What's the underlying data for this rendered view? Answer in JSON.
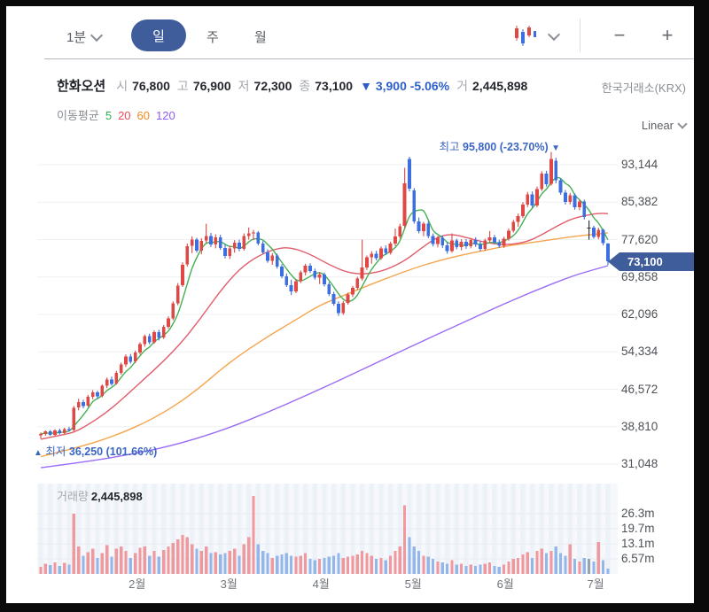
{
  "toolbar": {
    "interval_dropdown": "1분",
    "tabs": [
      {
        "label": "일",
        "active": true
      },
      {
        "label": "주",
        "active": false
      },
      {
        "label": "월",
        "active": false
      }
    ],
    "zoom_out": "−",
    "zoom_in": "+"
  },
  "header": {
    "symbol": "한화오션",
    "open_label": "시",
    "open": "76,800",
    "high_label": "고",
    "high": "76,900",
    "low_label": "저",
    "low": "72,300",
    "close_label": "종",
    "close": "73,100",
    "change_arrow": "▼",
    "change": "3,900",
    "change_pct": "-5.06%",
    "volume_label": "거",
    "volume": "2,445,898",
    "exchange": "한국거래소(KRX)"
  },
  "legend": {
    "title": "이동평균",
    "periods": [
      {
        "label": "5",
        "color": "#2faf4e"
      },
      {
        "label": "20",
        "color": "#ef4b57"
      },
      {
        "label": "60",
        "color": "#f08c1e"
      },
      {
        "label": "120",
        "color": "#8e5cf0"
      }
    ],
    "scale": "Linear"
  },
  "annotations": {
    "high": {
      "prefix": "최고",
      "text": "95,800 (-23.70%)",
      "marker": "▼"
    },
    "low": {
      "marker": "▲",
      "prefix": "최저",
      "text": "36,250 (101.66%)"
    }
  },
  "price_tag": "73,100",
  "volume_pane": {
    "label": "거래량",
    "value": "2,445,898"
  },
  "chart_data": {
    "type": "candlestick+volume",
    "symbol": "한화오션",
    "scale": "Linear",
    "y_axis_ticks": [
      {
        "label": "93,144",
        "v": 93.144
      },
      {
        "label": "85,382",
        "v": 85.382
      },
      {
        "label": "77,620",
        "v": 77.62
      },
      {
        "label": "69,858",
        "v": 69.858
      },
      {
        "label": "62,096",
        "v": 62.096
      },
      {
        "label": "54,334",
        "v": 54.334
      },
      {
        "label": "46,572",
        "v": 46.572
      },
      {
        "label": "38,810",
        "v": 38.81
      },
      {
        "label": "31,048",
        "v": 31.048
      }
    ],
    "volume_ticks": [
      {
        "label": "26.3m",
        "v": 26.3
      },
      {
        "label": "19.7m",
        "v": 19.7
      },
      {
        "label": "13.1m",
        "v": 13.1
      },
      {
        "label": "6.57m",
        "v": 6.57
      }
    ],
    "x_axis": [
      {
        "label": "2월",
        "i": 20.4
      },
      {
        "label": "3월",
        "i": 39.8
      },
      {
        "label": "4월",
        "i": 59.3
      },
      {
        "label": "5월",
        "i": 78.8
      },
      {
        "label": "6월",
        "i": 98.3
      },
      {
        "label": "7월",
        "i": 117.4
      }
    ],
    "high_marker": {
      "i": 108,
      "price": 95.8
    },
    "low_marker": {
      "i": 0,
      "price": 36.25
    },
    "candles": [
      [
        37.0,
        37.6,
        36.3,
        37.3
      ],
      [
        37.3,
        38.0,
        36.9,
        37.8
      ],
      [
        37.8,
        38.1,
        36.9,
        37.1
      ],
      [
        37.1,
        38.3,
        36.8,
        38.0
      ],
      [
        38.0,
        38.4,
        37.2,
        37.5
      ],
      [
        37.5,
        38.6,
        37.3,
        38.3
      ],
      [
        38.3,
        38.8,
        37.8,
        38.0
      ],
      [
        38.1,
        43.1,
        37.9,
        42.7
      ],
      [
        42.8,
        44.6,
        42.2,
        43.9
      ],
      [
        43.9,
        44.4,
        42.6,
        43.1
      ],
      [
        43.2,
        45.4,
        42.9,
        45.0
      ],
      [
        45.0,
        46.4,
        44.5,
        45.9
      ],
      [
        45.9,
        46.3,
        44.6,
        45.1
      ],
      [
        45.2,
        47.6,
        44.9,
        47.3
      ],
      [
        47.3,
        49.0,
        46.8,
        48.6
      ],
      [
        48.6,
        49.2,
        47.3,
        47.7
      ],
      [
        47.8,
        50.4,
        47.5,
        50.0
      ],
      [
        50.0,
        52.1,
        49.6,
        51.7
      ],
      [
        51.7,
        53.8,
        51.2,
        53.4
      ],
      [
        53.4,
        53.9,
        51.9,
        52.3
      ],
      [
        52.4,
        54.6,
        52.0,
        54.2
      ],
      [
        54.2,
        56.3,
        53.8,
        55.9
      ],
      [
        55.9,
        57.9,
        55.4,
        57.6
      ],
      [
        57.6,
        58.1,
        55.9,
        56.3
      ],
      [
        56.3,
        58.8,
        56.0,
        58.4
      ],
      [
        58.4,
        58.9,
        56.7,
        57.2
      ],
      [
        57.3,
        59.9,
        57.0,
        59.5
      ],
      [
        59.5,
        61.7,
        59.1,
        61.3
      ],
      [
        61.3,
        64.8,
        60.9,
        64.4
      ],
      [
        64.4,
        68.6,
        64.0,
        68.1
      ],
      [
        68.2,
        72.9,
        67.8,
        72.4
      ],
      [
        72.5,
        76.8,
        72.0,
        76.2
      ],
      [
        76.3,
        78.3,
        74.8,
        77.6
      ],
      [
        77.6,
        78.0,
        74.9,
        75.3
      ],
      [
        75.3,
        77.9,
        74.6,
        77.3
      ],
      [
        77.4,
        80.9,
        76.9,
        78.4
      ],
      [
        78.4,
        79.0,
        76.1,
        76.6
      ],
      [
        76.6,
        78.7,
        75.8,
        78.1
      ],
      [
        78.1,
        78.6,
        75.5,
        75.9
      ],
      [
        75.9,
        76.6,
        73.7,
        74.2
      ],
      [
        74.2,
        76.3,
        73.6,
        75.8
      ],
      [
        75.8,
        77.5,
        74.9,
        77.0
      ],
      [
        77.0,
        77.6,
        75.2,
        75.7
      ],
      [
        75.7,
        78.9,
        75.3,
        78.4
      ],
      [
        78.4,
        80.1,
        77.6,
        78.9
      ],
      [
        78.9,
        79.6,
        77.5,
        79.1
      ],
      [
        79.1,
        79.4,
        76.4,
        76.8
      ],
      [
        76.8,
        77.3,
        74.6,
        75.0
      ],
      [
        75.0,
        75.6,
        72.8,
        73.2
      ],
      [
        73.2,
        74.8,
        72.4,
        74.3
      ],
      [
        74.3,
        74.7,
        71.6,
        72.0
      ],
      [
        72.0,
        72.5,
        69.6,
        70.0
      ],
      [
        70.0,
        70.6,
        67.8,
        68.2
      ],
      [
        68.2,
        69.3,
        66.1,
        66.9
      ],
      [
        66.9,
        69.4,
        66.5,
        69.0
      ],
      [
        69.0,
        71.2,
        68.6,
        70.8
      ],
      [
        70.8,
        72.6,
        70.2,
        72.2
      ],
      [
        72.2,
        72.7,
        70.7,
        71.1
      ],
      [
        71.1,
        71.6,
        69.3,
        69.7
      ],
      [
        69.7,
        70.9,
        68.4,
        70.4
      ],
      [
        70.4,
        70.8,
        67.9,
        68.3
      ],
      [
        68.3,
        68.8,
        65.9,
        66.3
      ],
      [
        66.3,
        66.8,
        63.9,
        64.3
      ],
      [
        64.3,
        64.8,
        61.8,
        62.4
      ],
      [
        62.4,
        64.9,
        62.0,
        64.5
      ],
      [
        64.5,
        66.6,
        64.1,
        66.2
      ],
      [
        66.2,
        68.0,
        65.7,
        67.6
      ],
      [
        67.6,
        69.9,
        67.2,
        69.5
      ],
      [
        69.5,
        77.6,
        69.1,
        71.8
      ],
      [
        71.8,
        74.3,
        71.3,
        73.9
      ],
      [
        73.9,
        75.2,
        72.6,
        74.7
      ],
      [
        74.7,
        75.3,
        73.3,
        73.8
      ],
      [
        73.8,
        76.2,
        73.4,
        75.8
      ],
      [
        75.8,
        76.4,
        74.4,
        74.9
      ],
      [
        74.9,
        77.2,
        74.5,
        76.8
      ],
      [
        76.8,
        79.9,
        76.3,
        78.3
      ],
      [
        78.3,
        80.9,
        77.8,
        80.4
      ],
      [
        80.5,
        92.5,
        80.1,
        89.3
      ],
      [
        94.3,
        94.8,
        87.6,
        88.2
      ],
      [
        87.8,
        88.3,
        80.9,
        81.4
      ],
      [
        81.4,
        82.2,
        78.9,
        79.4
      ],
      [
        79.4,
        81.3,
        78.3,
        80.9
      ],
      [
        80.9,
        81.4,
        77.9,
        78.4
      ],
      [
        78.4,
        78.9,
        76.2,
        76.7
      ],
      [
        76.7,
        78.4,
        76.0,
        78.0
      ],
      [
        78.0,
        78.5,
        75.9,
        76.4
      ],
      [
        76.4,
        77.1,
        74.7,
        75.2
      ],
      [
        75.2,
        78.9,
        74.9,
        77.4
      ],
      [
        77.4,
        77.8,
        75.6,
        76.1
      ],
      [
        76.1,
        77.7,
        75.4,
        77.2
      ],
      [
        77.2,
        77.7,
        75.7,
        76.2
      ],
      [
        76.2,
        77.9,
        75.8,
        77.5
      ],
      [
        77.5,
        78.1,
        76.1,
        76.6
      ],
      [
        76.6,
        77.4,
        75.2,
        75.7
      ],
      [
        75.7,
        77.8,
        75.3,
        77.4
      ],
      [
        77.4,
        79.4,
        77.0,
        78.1
      ],
      [
        78.1,
        78.6,
        76.7,
        77.1
      ],
      [
        77.1,
        77.6,
        75.9,
        76.3
      ],
      [
        76.3,
        78.2,
        75.9,
        77.8
      ],
      [
        77.8,
        79.9,
        77.4,
        79.5
      ],
      [
        79.5,
        81.7,
        79.1,
        81.3
      ],
      [
        81.3,
        83.0,
        80.3,
        82.5
      ],
      [
        82.5,
        85.4,
        82.1,
        84.9
      ],
      [
        84.9,
        87.5,
        84.4,
        87.0
      ],
      [
        87.0,
        87.6,
        84.2,
        84.7
      ],
      [
        84.7,
        88.6,
        84.3,
        88.1
      ],
      [
        88.1,
        91.8,
        87.7,
        91.3
      ],
      [
        91.3,
        91.9,
        88.6,
        89.1
      ],
      [
        89.2,
        95.8,
        88.8,
        94.3
      ],
      [
        94.0,
        94.6,
        89.3,
        89.9
      ],
      [
        89.9,
        90.4,
        86.9,
        87.4
      ],
      [
        87.4,
        87.9,
        84.9,
        85.4
      ],
      [
        85.4,
        87.3,
        84.9,
        86.8
      ],
      [
        86.8,
        87.2,
        83.8,
        84.3
      ],
      [
        84.3,
        85.9,
        83.7,
        85.5
      ],
      [
        85.5,
        85.9,
        81.8,
        82.3
      ],
      [
        80.1,
        81.6,
        77.6,
        80.1
      ],
      [
        80.1,
        80.5,
        77.8,
        78.2
      ],
      [
        78.2,
        80.1,
        77.7,
        79.6
      ],
      [
        79.6,
        79.9,
        76.4,
        76.9
      ],
      [
        76.8,
        76.9,
        72.3,
        73.1
      ]
    ],
    "volumes": [
      3.0,
      4.5,
      3.8,
      5.0,
      3.5,
      4.8,
      4.0,
      26.3,
      12,
      8,
      9.5,
      11,
      7,
      9,
      12.5,
      7.5,
      11,
      12,
      10,
      7,
      9,
      11.5,
      12,
      8,
      10,
      7.5,
      10.5,
      12,
      13.5,
      15,
      17,
      16,
      13,
      11,
      10,
      12,
      9,
      9.5,
      8.5,
      9,
      10,
      11,
      8,
      13,
      16,
      34,
      13,
      10,
      9,
      7,
      8,
      8.5,
      9,
      8,
      7.5,
      8,
      9,
      6.5,
      6,
      6.5,
      7,
      7.5,
      8,
      9,
      7,
      7.5,
      8,
      8.5,
      10,
      9,
      8,
      6.5,
      7,
      6,
      8,
      10,
      12,
      30,
      16,
      12,
      10,
      8,
      7.5,
      6.5,
      5.5,
      5,
      4.5,
      6,
      4,
      4.5,
      3.5,
      4,
      3.5,
      4,
      4.5,
      5,
      3.5,
      3,
      4,
      5.5,
      6.5,
      7,
      8.5,
      9.5,
      7,
      10,
      11,
      9,
      10,
      12,
      9,
      8,
      13,
      6.5,
      5.5,
      7,
      6.5,
      5.5,
      14,
      6,
      2.4
    ],
    "ma20": [
      [
        0,
        36.2
      ],
      [
        4,
        37.0
      ],
      [
        7,
        37.6
      ],
      [
        10,
        39.2
      ],
      [
        14,
        41.8
      ],
      [
        18,
        45.2
      ],
      [
        22,
        48.8
      ],
      [
        26,
        52.4
      ],
      [
        30,
        56.5
      ],
      [
        34,
        61.5
      ],
      [
        38,
        67.0
      ],
      [
        42,
        71.5
      ],
      [
        46,
        74.3
      ],
      [
        50,
        75.8
      ],
      [
        53,
        76.0
      ],
      [
        57,
        74.6
      ],
      [
        61,
        72.4
      ],
      [
        65,
        70.7
      ],
      [
        69,
        70.4
      ],
      [
        73,
        71.3
      ],
      [
        77,
        73.2
      ],
      [
        81,
        76.2
      ],
      [
        84,
        78.2
      ],
      [
        87,
        78.8
      ],
      [
        91,
        77.8
      ],
      [
        95,
        76.8
      ],
      [
        99,
        76.5
      ],
      [
        103,
        77.2
      ],
      [
        106,
        78.6
      ],
      [
        109,
        80.3
      ],
      [
        112,
        81.8
      ],
      [
        115,
        82.6
      ],
      [
        118,
        83.1
      ],
      [
        120,
        83.0
      ]
    ],
    "ma60": [
      [
        0,
        32.6
      ],
      [
        8,
        34.5
      ],
      [
        16,
        37.0
      ],
      [
        24,
        40.5
      ],
      [
        32,
        45.5
      ],
      [
        40,
        52.3
      ],
      [
        48,
        57.5
      ],
      [
        54,
        61.0
      ],
      [
        59,
        64.0
      ],
      [
        64,
        66.0
      ],
      [
        69,
        68.0
      ],
      [
        74,
        69.9
      ],
      [
        79,
        71.7
      ],
      [
        84,
        73.2
      ],
      [
        89,
        74.4
      ],
      [
        94,
        75.4
      ],
      [
        98,
        76.2
      ],
      [
        103,
        76.9
      ],
      [
        108,
        77.6
      ],
      [
        113,
        78.3
      ],
      [
        117,
        78.7
      ],
      [
        120,
        79.0
      ]
    ],
    "ma120": [
      [
        0,
        30.3
      ],
      [
        10,
        31.6
      ],
      [
        20,
        33.2
      ],
      [
        30,
        35.4
      ],
      [
        40,
        38.6
      ],
      [
        48,
        41.8
      ],
      [
        56,
        45.2
      ],
      [
        64,
        48.8
      ],
      [
        72,
        52.5
      ],
      [
        80,
        56.2
      ],
      [
        88,
        59.8
      ],
      [
        96,
        63.4
      ],
      [
        104,
        66.8
      ],
      [
        112,
        69.9
      ],
      [
        116,
        71.1
      ],
      [
        120,
        72.2
      ]
    ],
    "colors": {
      "up": "#e04846",
      "down": "#3d6fe0",
      "flat": "#26282c",
      "vol_up": "#f0989c",
      "vol_down": "#93b7ea",
      "vol_flat": "#9aa3ad",
      "ma5": "#45b054",
      "ma20": "#e05c6a",
      "ma60": "#f5a54d",
      "ma120": "#9a6cf5",
      "grid": "#eef0f4",
      "vol_grid": "#e7ecf4",
      "vol_bg": "#f6f8fc",
      "vol_stripe": "#edf1f8",
      "accent": "#3f5c9b",
      "annotation": "#3b66c4"
    }
  }
}
